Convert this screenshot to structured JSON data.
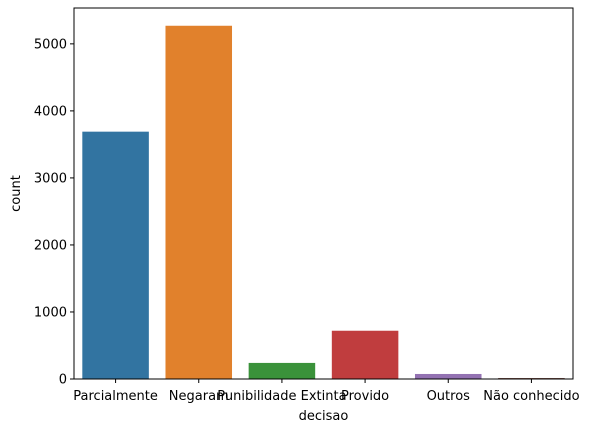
{
  "chart_data": {
    "type": "bar",
    "title": "",
    "xlabel": "decisao",
    "ylabel": "count",
    "categories": [
      "Parcialmente",
      "Negaram",
      "Punibilidade Extinta",
      "Provido",
      "Outros",
      "Não conhecido"
    ],
    "values": [
      3690,
      5270,
      240,
      720,
      75,
      15
    ],
    "colors": [
      "#3274a1",
      "#e1812c",
      "#3a923a",
      "#c03d3e",
      "#9372b2",
      "#845b53"
    ],
    "ylim": [
      0,
      5535
    ],
    "yticks": [
      0,
      1000,
      2000,
      3000,
      4000,
      5000
    ],
    "grid": false,
    "legend": "none"
  }
}
